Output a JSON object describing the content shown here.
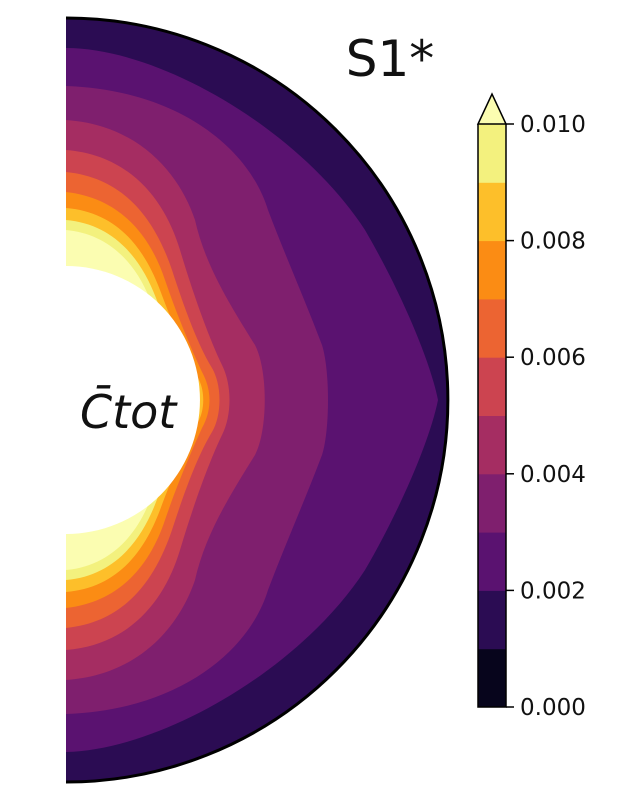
{
  "chart_data": {
    "type": "contour",
    "title": "S1*",
    "field_label": "C̄tot",
    "colorbar": {
      "levels": [
        0.0,
        0.001,
        0.002,
        0.003,
        0.004,
        0.005,
        0.006,
        0.007,
        0.008,
        0.009,
        0.01
      ],
      "colors": [
        "#07051c",
        "#2b0c53",
        "#5a1270",
        "#7f1f6e",
        "#a52d62",
        "#cc4450",
        "#ec6432",
        "#fb8c14",
        "#fdbf2a",
        "#f3f17e"
      ],
      "extend": "max",
      "extend_color": "#fbfdb1",
      "ticks": [
        "0.000",
        "0.002",
        "0.004",
        "0.006",
        "0.008",
        "0.010"
      ]
    }
  }
}
